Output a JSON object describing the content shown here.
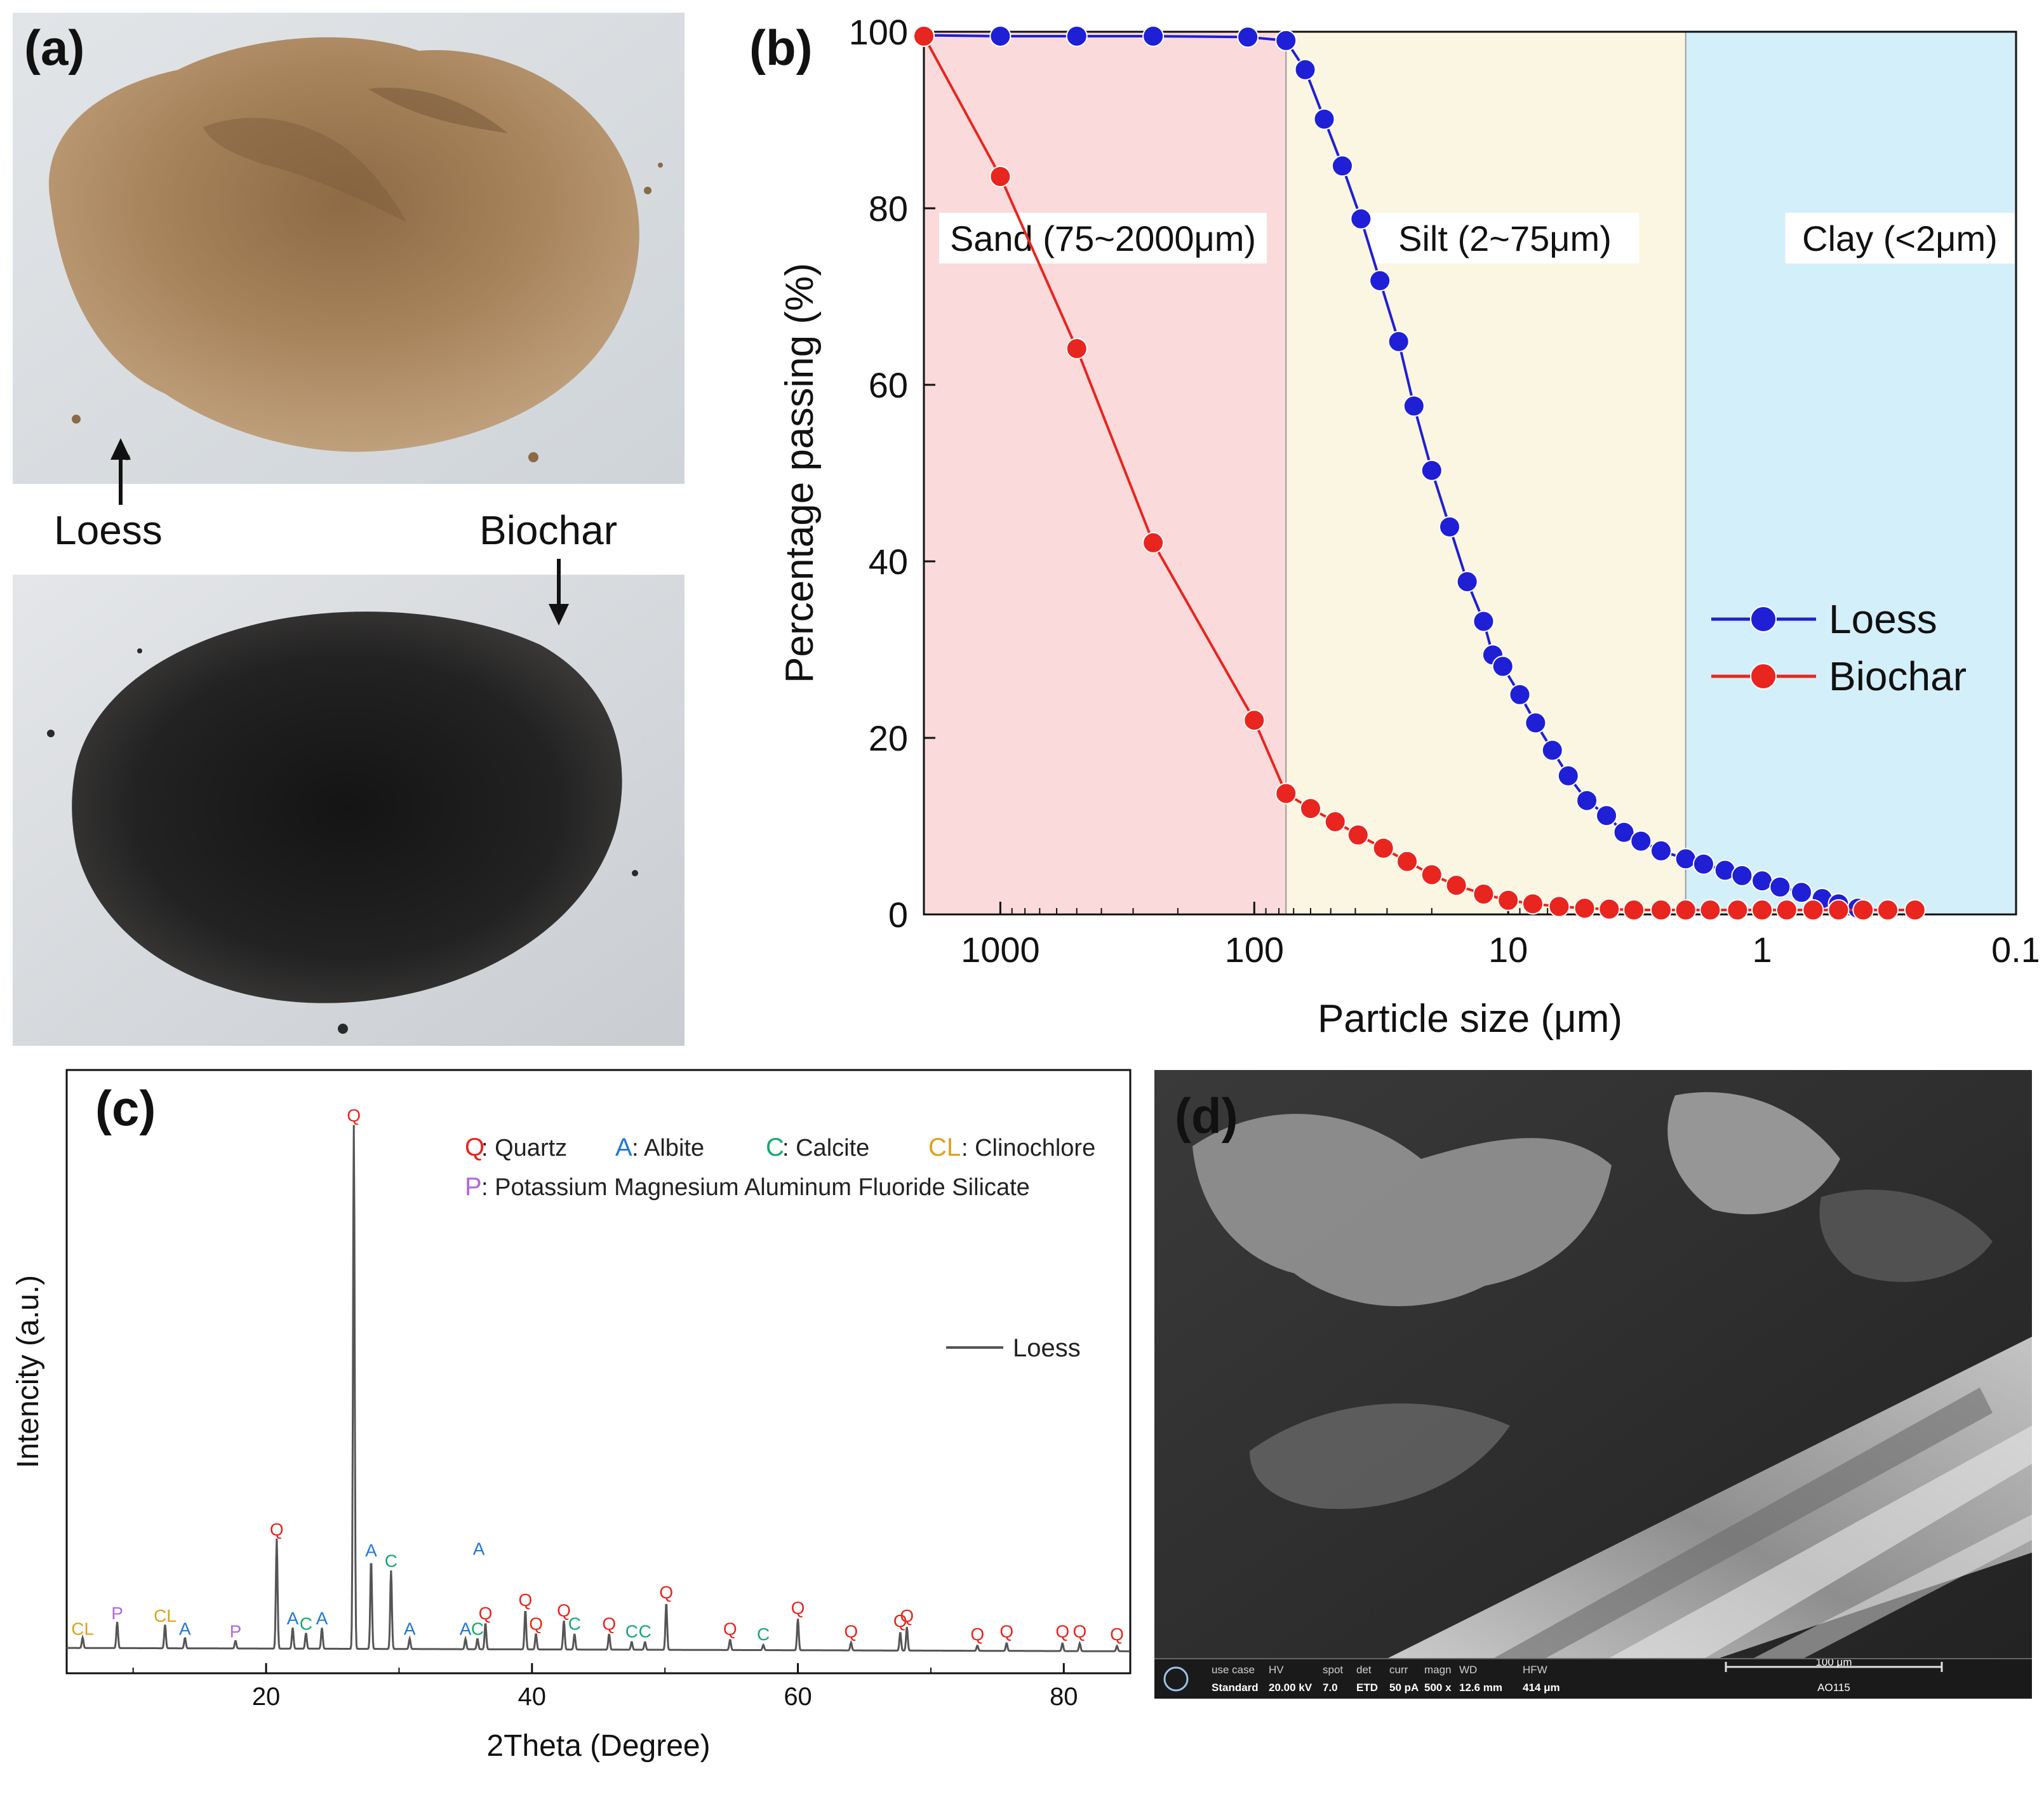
{
  "panels": {
    "a": {
      "label": "(a)",
      "loess_label": "Loess",
      "biochar_label": "Biochar",
      "colors": {
        "loess": "#a8845c",
        "biochar": "#1f1e1e",
        "background": "#d9dde0"
      }
    },
    "b": {
      "label": "(b)"
    },
    "c": {
      "label": "(c)"
    },
    "d": {
      "label": "(d)",
      "sem_bar": {
        "headers": [
          "use case",
          "HV",
          "spot",
          "det",
          "curr",
          "magn",
          "WD",
          "HFW"
        ],
        "values": [
          "Standard",
          "20.00 kV",
          "7.0",
          "ETD",
          "50 pA",
          "500 x",
          "12.6 mm",
          "414 μm"
        ],
        "scale": "100 μm",
        "id": "AO115"
      }
    }
  },
  "chart_data": [
    {
      "panel": "b",
      "type": "line",
      "xlabel": "Particle size (μm)",
      "ylabel": "Percentage passing (%)",
      "x_scale": "log",
      "x_reversed": true,
      "xlim": [
        2000,
        0.1
      ],
      "ylim": [
        0,
        100
      ],
      "xticks": [
        1000,
        100,
        10,
        1,
        0.1
      ],
      "xtick_labels": [
        "1000",
        "100",
        "10",
        "1",
        "0.1"
      ],
      "yticks": [
        0,
        20,
        40,
        60,
        80,
        100
      ],
      "ytick_labels": [
        "0",
        "20",
        "40",
        "60",
        "80",
        "100"
      ],
      "regions": [
        {
          "label": "Sand (75~2000μm)",
          "from": 2000,
          "to": 75,
          "color": "#fadadb"
        },
        {
          "label": "Silt (2~75μm)",
          "from": 75,
          "to": 2,
          "color": "#fbf6e1"
        },
        {
          "label": "Clay (<2μm)",
          "from": 2,
          "to": 0.1,
          "color": "#d3effa"
        }
      ],
      "legend_position": "right",
      "series": [
        {
          "name": "Loess",
          "color": "#1f1fd6",
          "x": [
            2000,
            1000,
            500,
            250,
            106,
            75,
            63,
            53,
            45,
            38,
            32,
            27,
            23.5,
            20,
            17,
            14.5,
            12.5,
            11.5,
            10.5,
            9,
            7.8,
            6.7,
            5.8,
            4.9,
            4.1,
            3.5,
            3,
            2.5,
            2,
            1.7,
            1.4,
            1.2,
            1,
            0.85,
            0.7,
            0.58,
            0.5,
            0.42
          ],
          "y": [
            99.6,
            99.5,
            99.5,
            99.5,
            99.4,
            99,
            95.7,
            90.1,
            84.8,
            78.8,
            71.8,
            64.9,
            57.6,
            50.3,
            43.9,
            37.7,
            33.2,
            29.4,
            28.1,
            24.9,
            21.7,
            18.6,
            15.7,
            12.9,
            11.2,
            9.3,
            8.3,
            7.2,
            6.3,
            5.7,
            5,
            4.4,
            3.8,
            3.1,
            2.5,
            1.8,
            1.2,
            0.7
          ]
        },
        {
          "name": "Biochar",
          "color": "#e8251e",
          "x": [
            2000,
            1000,
            500,
            250,
            100,
            75,
            60,
            48,
            39,
            31,
            25,
            20,
            16,
            12.5,
            10,
            8,
            6.3,
            5,
            4,
            3.2,
            2.5,
            2,
            1.6,
            1.25,
            1,
            0.8,
            0.63,
            0.5,
            0.4,
            0.32,
            0.25
          ],
          "y": [
            99.5,
            83.6,
            64.1,
            42.1,
            22,
            13.7,
            12,
            10.5,
            9,
            7.5,
            6,
            4.5,
            3.3,
            2.3,
            1.6,
            1.2,
            0.9,
            0.7,
            0.6,
            0.5,
            0.5,
            0.5,
            0.5,
            0.5,
            0.5,
            0.5,
            0.5,
            0.5,
            0.5,
            0.5,
            0.5
          ]
        }
      ]
    },
    {
      "panel": "c",
      "type": "line",
      "xlabel": "2Theta (Degree)",
      "ylabel": "Intencity (a.u.)",
      "xlim": [
        5,
        85
      ],
      "ylim": [
        0,
        100
      ],
      "xticks": [
        20,
        40,
        60,
        80
      ],
      "xtick_labels": [
        "20",
        "40",
        "60",
        "80"
      ],
      "legend": [
        {
          "code": "Q",
          "name": " : Quartz",
          "color": "#e8251e"
        },
        {
          "code": "A",
          "name": " : Albite",
          "color": "#1f78d6"
        },
        {
          "code": "C",
          "name": " : Calcite",
          "color": "#17a870"
        },
        {
          "code": "CL",
          "name": " : Clinochlore",
          "color": "#e0a01a"
        },
        {
          "code": "P",
          "name": " : Potassium Magnesium Aluminum Fluoride Silicate",
          "color": "#b266e0"
        }
      ],
      "series": [
        {
          "name": "Loess",
          "color": "#555555"
        }
      ],
      "peaks": [
        {
          "x": 6.2,
          "h": 2,
          "label": "CL"
        },
        {
          "x": 8.8,
          "h": 5,
          "label": "P"
        },
        {
          "x": 12.4,
          "h": 4.5,
          "label": "CL"
        },
        {
          "x": 13.9,
          "h": 2,
          "label": "A"
        },
        {
          "x": 17.7,
          "h": 1.5,
          "label": "P"
        },
        {
          "x": 20.8,
          "h": 21,
          "label": "Q"
        },
        {
          "x": 22.0,
          "h": 4,
          "label": "A"
        },
        {
          "x": 23.0,
          "h": 3,
          "label": "C"
        },
        {
          "x": 24.2,
          "h": 4,
          "label": "A"
        },
        {
          "x": 26.6,
          "h": 100,
          "label": "Q"
        },
        {
          "x": 27.9,
          "h": 17,
          "label": "A"
        },
        {
          "x": 29.4,
          "h": 15,
          "label": "C"
        },
        {
          "x": 30.8,
          "h": 2,
          "label": "A"
        },
        {
          "x": 35.0,
          "h": 2,
          "label": "A"
        },
        {
          "x": 35.9,
          "h": 2,
          "label": "C"
        },
        {
          "x": 36.5,
          "h": 5,
          "label": "Q"
        },
        {
          "x": 39.5,
          "h": 7.5,
          "label": "Q"
        },
        {
          "x": 40.3,
          "h": 3,
          "label": "Q"
        },
        {
          "x": 42.4,
          "h": 5.5,
          "label": "Q"
        },
        {
          "x": 43.2,
          "h": 3,
          "label": "C"
        },
        {
          "x": 45.8,
          "h": 3,
          "label": "Q"
        },
        {
          "x": 47.5,
          "h": 1.5,
          "label": "C"
        },
        {
          "x": 48.5,
          "h": 1.5,
          "label": "C"
        },
        {
          "x": 50.1,
          "h": 9,
          "label": "Q"
        },
        {
          "x": 54.9,
          "h": 2,
          "label": "Q"
        },
        {
          "x": 57.4,
          "h": 1,
          "label": "C"
        },
        {
          "x": 60.0,
          "h": 6,
          "label": "Q"
        },
        {
          "x": 64.0,
          "h": 1.5,
          "label": "Q"
        },
        {
          "x": 67.7,
          "h": 3.5,
          "label": "Q"
        },
        {
          "x": 68.2,
          "h": 4.5,
          "label": "Q"
        },
        {
          "x": 73.5,
          "h": 1,
          "label": "Q"
        },
        {
          "x": 75.7,
          "h": 1.5,
          "label": "Q"
        },
        {
          "x": 79.9,
          "h": 1.5,
          "label": "Q"
        },
        {
          "x": 81.2,
          "h": 1.5,
          "label": "Q"
        },
        {
          "x": 84.0,
          "h": 1,
          "label": "Q"
        }
      ],
      "extra_labels": [
        {
          "x": 36.0,
          "y": 19,
          "label": "A"
        }
      ]
    }
  ]
}
